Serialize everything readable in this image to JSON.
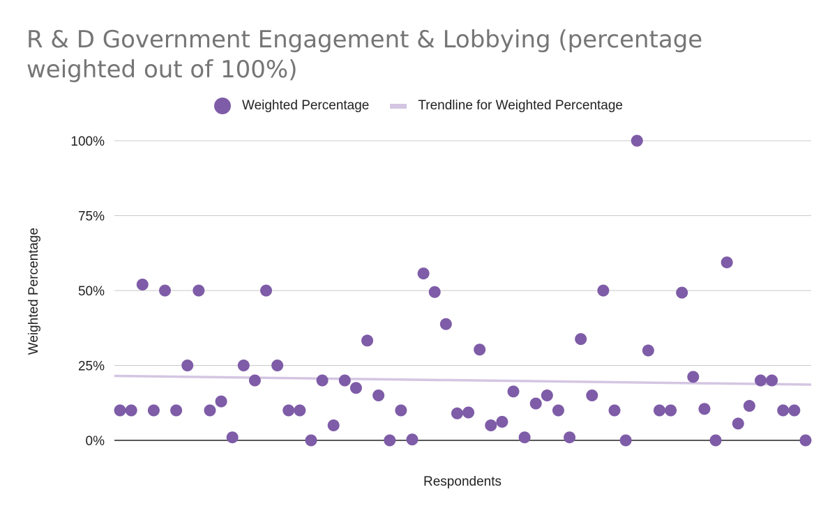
{
  "chart_data": {
    "type": "scatter",
    "title": "R & D Government Engagement & Lobbying (percentage weighted out of 100%)",
    "xlabel": "Respondents",
    "ylabel": "Weighted Percentage",
    "ylim": [
      0,
      100
    ],
    "yticks": [
      "0%",
      "25%",
      "50%",
      "75%",
      "100%"
    ],
    "grid": true,
    "legend_position": "top",
    "series": [
      {
        "name": "Weighted Percentage",
        "color": "#7e5ca7",
        "values": [
          10,
          10,
          52,
          10,
          50,
          10,
          25,
          50,
          10,
          13,
          1,
          25,
          20,
          50,
          25,
          10,
          10,
          0,
          20,
          5,
          20,
          17.5,
          33.3,
          15,
          0,
          10,
          0.3,
          55.7,
          49.5,
          38.8,
          9,
          9.3,
          30.3,
          5,
          6.2,
          16.3,
          1,
          12.3,
          15,
          10,
          1,
          33.8,
          15,
          50,
          10,
          0,
          100,
          30,
          10,
          10,
          49.3,
          21.2,
          10.5,
          0,
          59.4,
          5.6,
          11.5,
          20,
          20,
          10,
          10,
          0
        ]
      },
      {
        "name": "Trendline for Weighted Percentage",
        "color": "#d4c6e2",
        "trend_start": 21.5,
        "trend_end": 18.6
      }
    ]
  }
}
